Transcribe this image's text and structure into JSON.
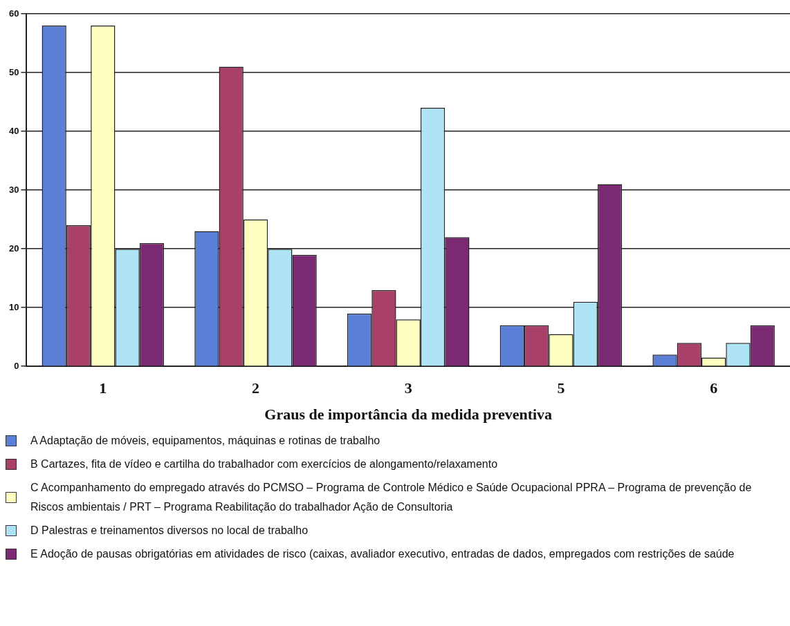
{
  "chart_data": {
    "type": "bar",
    "xlabel": "Graus de importância da medida preventiva",
    "categories": [
      "1",
      "2",
      "3",
      "5",
      "6"
    ],
    "series": [
      {
        "name": "A  Adaptação de móveis, equipamentos, máquinas e rotinas de trabalho",
        "color": "#5b7fd6",
        "values": [
          58,
          23,
          9,
          7,
          2
        ]
      },
      {
        "name": "B  Cartazes, fita de vídeo e cartilha do trabalhador com exercícios de alongamento/relaxamento",
        "color": "#a8406a",
        "values": [
          24,
          51,
          13,
          7,
          4
        ]
      },
      {
        "name": "C  Acompanhamento do empregado através do PCMSO – Programa de Controle Médico e Saúde Ocupacional PPRA – Programa de prevenção de Riscos ambientais / PRT – Programa Reabilitação do trabalhador Ação de Consultoria",
        "color": "#ffffc0",
        "values": [
          58,
          25,
          8,
          5.5,
          1.5
        ]
      },
      {
        "name": "D  Palestras e treinamentos diversos no local de trabalho",
        "color": "#aee4f5",
        "values": [
          20,
          20,
          44,
          11,
          4
        ]
      },
      {
        "name": "E  Adoção de pausas obrigatórias em atividades de risco (caixas, avaliador executivo, entradas de dados, empregados com restrições de saúde",
        "color": "#7a2a72",
        "values": [
          21,
          19,
          22,
          31,
          7
        ]
      }
    ],
    "ylim": [
      0,
      60
    ],
    "yticks": [
      0,
      10,
      20,
      30,
      40,
      50,
      60
    ],
    "grid": "y",
    "legend": "bottom"
  }
}
